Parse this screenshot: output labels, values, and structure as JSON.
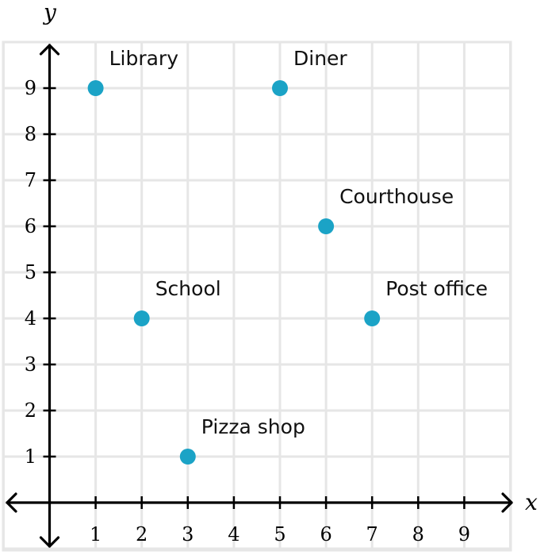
{
  "chart_data": {
    "type": "scatter",
    "xlabel": "x",
    "ylabel": "y",
    "xlim": [
      -1,
      10
    ],
    "ylim": [
      -1,
      10
    ],
    "x_ticks": [
      1,
      2,
      3,
      4,
      5,
      6,
      7,
      8,
      9
    ],
    "y_ticks": [
      1,
      2,
      3,
      4,
      5,
      6,
      7,
      8,
      9
    ],
    "grid": true,
    "point_color": "#1ba3c6",
    "points": [
      {
        "label": "Library",
        "x": 1,
        "y": 9
      },
      {
        "label": "Diner",
        "x": 5,
        "y": 9
      },
      {
        "label": "Courthouse",
        "x": 6,
        "y": 6
      },
      {
        "label": "School",
        "x": 2,
        "y": 4
      },
      {
        "label": "Post office",
        "x": 7,
        "y": 4
      },
      {
        "label": "Pizza shop",
        "x": 3,
        "y": 1
      }
    ]
  }
}
